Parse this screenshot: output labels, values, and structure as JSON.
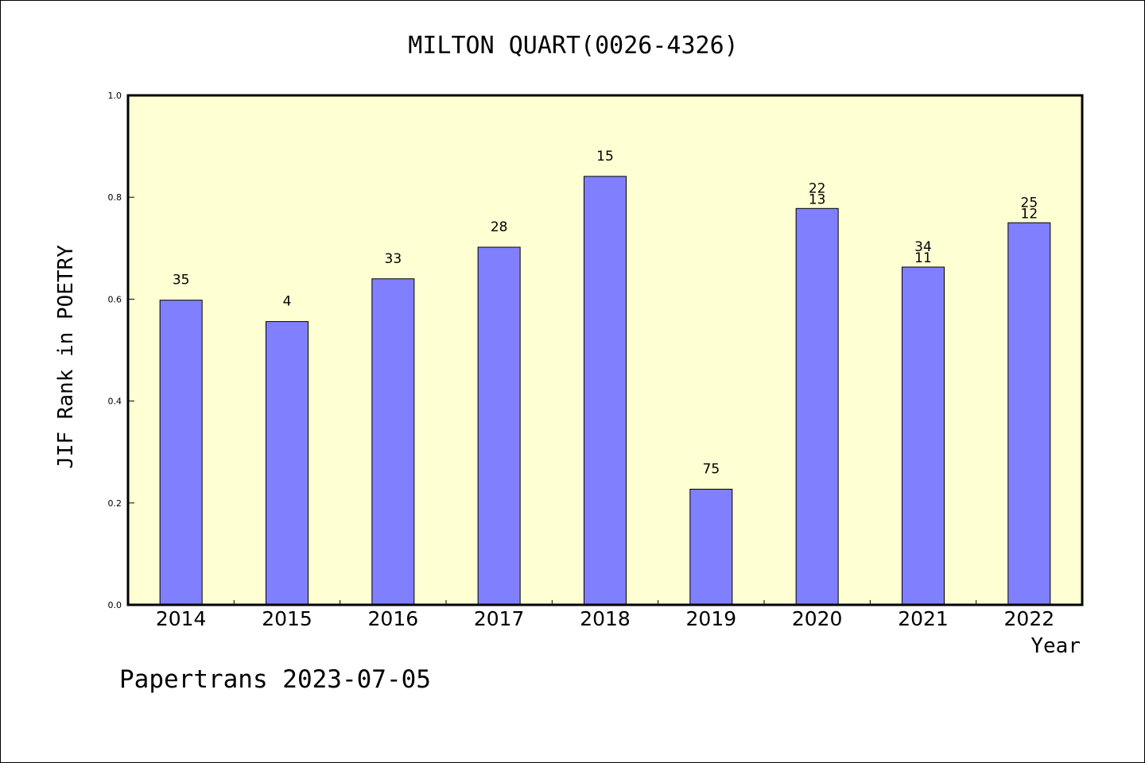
{
  "chart_data": {
    "type": "bar",
    "title": "MILTON QUART(0026-4326)",
    "ylabel": "JIF Rank in POETRY",
    "xlabel": "Year",
    "ylim": [
      0,
      1.0
    ],
    "yticks": [
      "0.0",
      "0.2",
      "0.4",
      "0.6",
      "0.8",
      "1.0"
    ],
    "categories": [
      "2014",
      "2015",
      "2016",
      "2017",
      "2018",
      "2019",
      "2020",
      "2021",
      "2022"
    ],
    "values": [
      0.598,
      0.556,
      0.64,
      0.702,
      0.841,
      0.227,
      0.778,
      0.663,
      0.75
    ],
    "rank_labels": [
      [
        "35"
      ],
      [
        "4"
      ],
      [
        "33"
      ],
      [
        "28"
      ],
      [
        "15"
      ],
      [
        "75"
      ],
      [
        "22",
        "13"
      ],
      [
        "34",
        "11"
      ],
      [
        "25",
        "12"
      ]
    ],
    "grid": false,
    "colors": {
      "plot_bg": "#ffffd4",
      "bar": "#8080ff"
    }
  },
  "footer": "Papertrans 2023-07-05"
}
